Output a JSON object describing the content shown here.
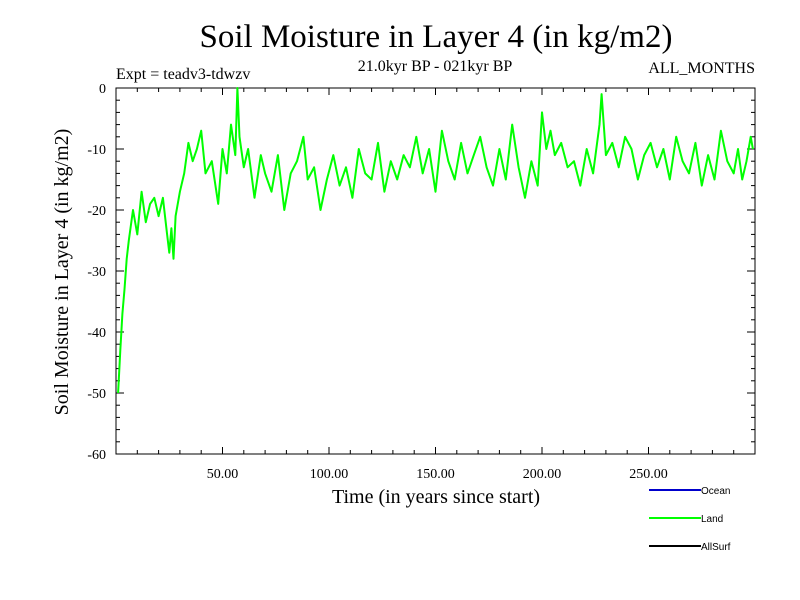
{
  "chart_data": {
    "type": "line",
    "title": "Soil Moisture in Layer 4 (in kg/m2)",
    "experiment": "Expt = teadv3-tdwzv",
    "period": "21.0kyr BP - 021kyr BP",
    "months": "ALL_MONTHS",
    "xlabel": "Time (in years since start)",
    "ylabel": "Soil Moisture in Layer 4 (in kg/m2)",
    "xlim": [
      0,
      300
    ],
    "ylim": [
      -60,
      0
    ],
    "x_ticks": [
      50,
      100,
      150,
      200,
      250
    ],
    "x_tick_labels": [
      "50.00",
      "100.00",
      "150.00",
      "200.00",
      "250.00"
    ],
    "y_ticks": [
      0,
      -10,
      -20,
      -30,
      -40,
      -50,
      -60
    ],
    "y_tick_labels": [
      "0",
      "-10",
      "-20",
      "-30",
      "-40",
      "-50",
      "-60"
    ],
    "legend_position": "bottom-right",
    "series": [
      {
        "name": "Ocean",
        "color": "#0000cc",
        "x": [],
        "values": []
      },
      {
        "name": "Land",
        "color": "#00ff00",
        "x": [
          1,
          2,
          3,
          4,
          5,
          6,
          8,
          10,
          12,
          14,
          16,
          18,
          20,
          22,
          24,
          25,
          26,
          27,
          28,
          30,
          32,
          34,
          36,
          38,
          40,
          42,
          45,
          48,
          50,
          52,
          54,
          56,
          57,
          58,
          60,
          62,
          65,
          68,
          70,
          73,
          76,
          79,
          82,
          85,
          88,
          90,
          93,
          96,
          99,
          102,
          105,
          108,
          111,
          114,
          117,
          120,
          123,
          126,
          129,
          132,
          135,
          138,
          141,
          144,
          147,
          150,
          153,
          156,
          159,
          162,
          165,
          168,
          171,
          174,
          177,
          180,
          183,
          186,
          189,
          192,
          195,
          198,
          200,
          202,
          204,
          206,
          209,
          212,
          215,
          218,
          221,
          224,
          227,
          228,
          230,
          233,
          236,
          239,
          242,
          245,
          248,
          251,
          254,
          257,
          260,
          263,
          266,
          269,
          272,
          275,
          278,
          281,
          284,
          287,
          290,
          292,
          294,
          296,
          298,
          299
        ],
        "values": [
          -50,
          -43,
          -37,
          -33,
          -28,
          -25,
          -20,
          -24,
          -17,
          -22,
          -19,
          -18,
          -21,
          -18,
          -24,
          -27,
          -23,
          -28,
          -21,
          -17,
          -14,
          -9,
          -12,
          -10,
          -7,
          -14,
          -12,
          -19,
          -10,
          -14,
          -6,
          -11,
          0,
          -8,
          -13,
          -10,
          -18,
          -11,
          -14,
          -17,
          -11,
          -20,
          -14,
          -12,
          -8,
          -15,
          -13,
          -20,
          -15,
          -11,
          -16,
          -13,
          -18,
          -10,
          -14,
          -15,
          -9,
          -17,
          -12,
          -15,
          -11,
          -13,
          -8,
          -14,
          -10,
          -17,
          -7,
          -12,
          -15,
          -9,
          -14,
          -11,
          -8,
          -13,
          -16,
          -10,
          -15,
          -6,
          -13,
          -18,
          -12,
          -16,
          -4,
          -10,
          -7,
          -11,
          -9,
          -13,
          -12,
          -16,
          -10,
          -14,
          -6,
          -1,
          -11,
          -9,
          -13,
          -8,
          -10,
          -15,
          -11,
          -9,
          -13,
          -10,
          -15,
          -8,
          -12,
          -14,
          -9,
          -16,
          -11,
          -15,
          -7,
          -12,
          -14,
          -10,
          -15,
          -12,
          -8,
          -10
        ]
      },
      {
        "name": "AllSurf",
        "color": "#000000",
        "x": [],
        "values": []
      }
    ]
  }
}
